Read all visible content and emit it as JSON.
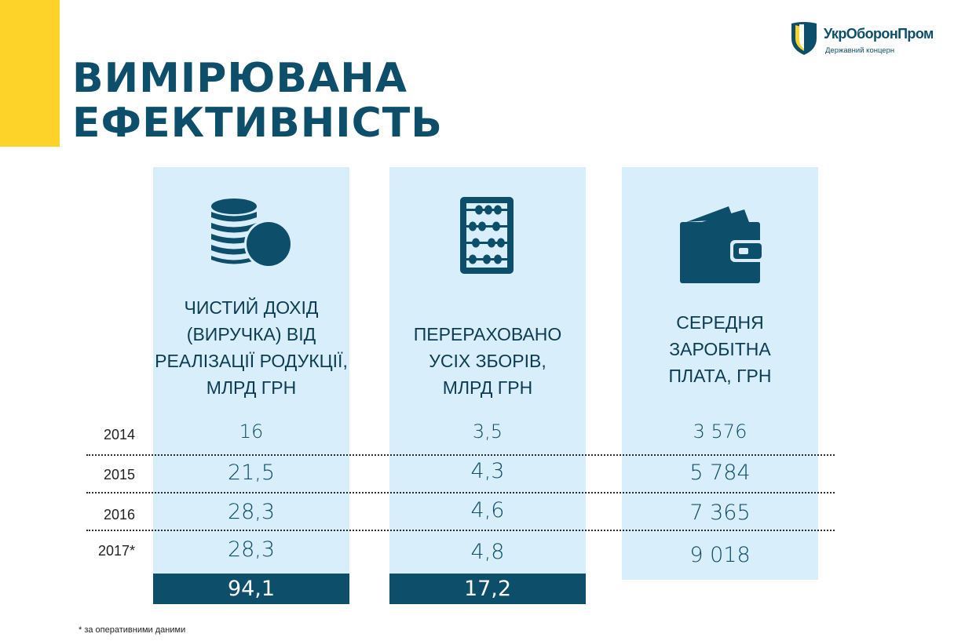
{
  "header": {
    "title_line1": "ВИМІРЮВАНА",
    "title_line2": "ЕФЕКТИВНІСТЬ"
  },
  "logo": {
    "name": "УкрОборонПром",
    "tagline": "Державний концерн"
  },
  "columns": [
    {
      "icon": "coins-icon",
      "heading": [
        "ЧИСТИЙ ДОХІД",
        "(ВИРУЧКА) ВІД",
        "РЕАЛІЗАЦІЇ РОДУКЦІЇ,",
        "МЛРД ГРН"
      ],
      "values": [
        "16",
        "21,5",
        "28,3",
        "28,3"
      ],
      "total": "94,1"
    },
    {
      "icon": "abacus-icon",
      "heading": [
        "ПЕРЕРАХОВАНО",
        "УСІХ ЗБОРІВ,",
        "МЛРД ГРН"
      ],
      "values": [
        "3,5",
        "4,3",
        "4,6",
        "4,8"
      ],
      "total": "17,2"
    },
    {
      "icon": "wallet-icon",
      "heading": [
        "СЕРЕДНЯ",
        "ЗАРОБІТНА",
        "ПЛАТА, ГРН"
      ],
      "values": [
        "3 576",
        "5 784",
        "7 365",
        "9 018"
      ]
    }
  ],
  "years": [
    "2014",
    "2015",
    "2016",
    "2017*"
  ],
  "footnote": "* за оперативними даними",
  "colors": {
    "accent_yellow": "#fdd32a",
    "primary_blue": "#0d4f6b",
    "column_bg": "#d9eefb"
  }
}
